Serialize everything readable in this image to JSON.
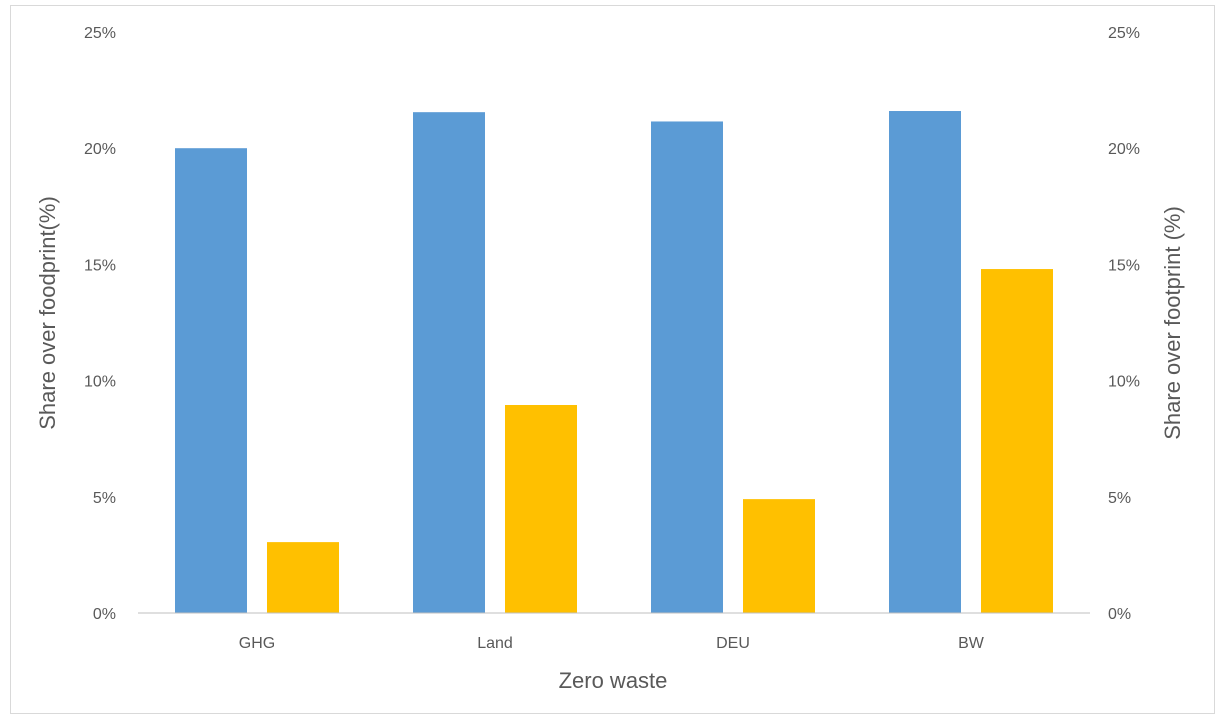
{
  "chart_data": {
    "type": "bar",
    "categories": [
      "GHG",
      "Land",
      "DEU",
      "BW"
    ],
    "series": [
      {
        "values": [
          20.0,
          21.55,
          21.15,
          21.6
        ],
        "color": "#5b9bd5",
        "axis": "left"
      },
      {
        "values": [
          3.05,
          8.95,
          4.9,
          14.8
        ],
        "color": "#ffc000",
        "axis": "right"
      }
    ],
    "xlabel": "Zero waste",
    "ylabel": "Share over foodprint(%)",
    "ylabel_right": "Share over footprint (%)",
    "ylim": [
      0,
      25
    ],
    "yticks": [
      "0%",
      "5%",
      "10%",
      "15%",
      "20%",
      "25%"
    ],
    "ytick_values": [
      0,
      5,
      10,
      15,
      20,
      25
    ],
    "grid": false
  }
}
